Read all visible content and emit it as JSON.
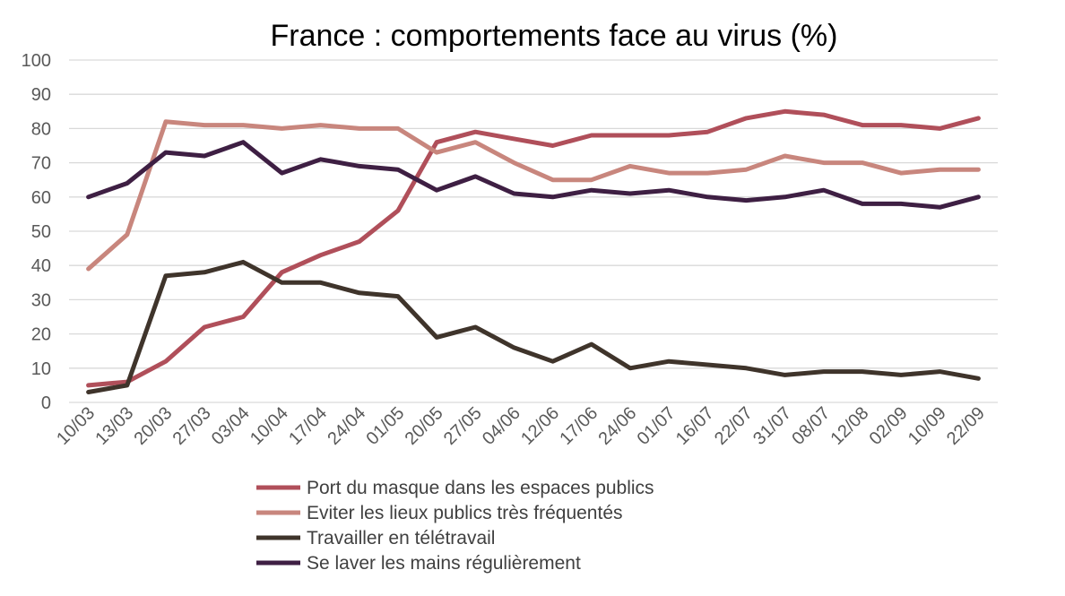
{
  "chart_data": {
    "type": "line",
    "title": "France : comportements face au virus (%)",
    "xlabel": "",
    "ylabel": "",
    "ylim": [
      0,
      100
    ],
    "yticks": [
      0,
      10,
      20,
      30,
      40,
      50,
      60,
      70,
      80,
      90,
      100
    ],
    "grid": true,
    "legend_position": "bottom",
    "categories": [
      "10/03",
      "13/03",
      "20/03",
      "27/03",
      "03/04",
      "10/04",
      "17/04",
      "24/04",
      "01/05",
      "20/05",
      "27/05",
      "04/06",
      "12/06",
      "17/06",
      "24/06",
      "01/07",
      "16/07",
      "22/07",
      "31/07",
      "08/07",
      "12/08",
      "02/09",
      "10/09",
      "22/09"
    ],
    "series": [
      {
        "name": "Port du masque dans les espaces publics",
        "color": "#b04f5a",
        "values": [
          5,
          6,
          12,
          22,
          25,
          38,
          43,
          47,
          56,
          76,
          79,
          77,
          75,
          78,
          78,
          78,
          79,
          83,
          85,
          84,
          81,
          81,
          80,
          83
        ]
      },
      {
        "name": "Eviter les lieux publics très fréquentés",
        "color": "#c8867d",
        "values": [
          39,
          49,
          82,
          81,
          81,
          80,
          81,
          80,
          80,
          73,
          76,
          70,
          65,
          65,
          69,
          67,
          67,
          68,
          72,
          70,
          70,
          67,
          68,
          68
        ]
      },
      {
        "name": "Travailler en télétravail",
        "color": "#3f342b",
        "values": [
          3,
          5,
          37,
          38,
          41,
          35,
          35,
          32,
          31,
          19,
          22,
          16,
          12,
          17,
          10,
          12,
          11,
          10,
          8,
          9,
          9,
          8,
          9,
          7
        ]
      },
      {
        "name": "Se laver les mains régulièrement",
        "color": "#3e1f43",
        "values": [
          60,
          64,
          73,
          72,
          76,
          67,
          71,
          69,
          68,
          62,
          66,
          61,
          60,
          62,
          61,
          62,
          60,
          59,
          60,
          62,
          58,
          58,
          57,
          60
        ]
      }
    ]
  }
}
